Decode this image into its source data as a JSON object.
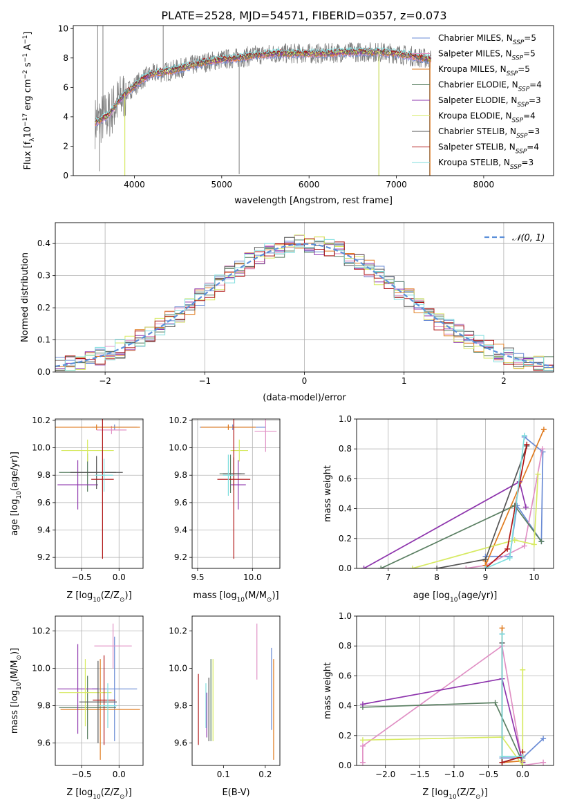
{
  "figure": {
    "title": "PLATE=2528, MJD=54571, FIBERID=0357, z=0.073"
  },
  "colors": {
    "chabrier_miles": "#6a8bd4",
    "salpeter_miles": "#e08fc4",
    "kroupa_miles": "#e07b1f",
    "chabrier_elodie": "#5a7f62",
    "salpeter_elodie": "#8e35ad",
    "kroupa_elodie": "#d7ea63",
    "chabrier_stelib": "#555555",
    "salpeter_stelib": "#b01515",
    "kroupa_stelib": "#7fdede",
    "data": "#7f7f7f",
    "gauss": "#5b8fd9"
  },
  "chart_data": [
    {
      "id": "spectrum",
      "type": "line",
      "xlabel": "wavelength [Angstrom, rest frame]",
      "ylabel": "Flux [f",
      "ylabel_sub": "λ",
      "ylabel_rest": "10",
      "ylabel_sup1": "−17",
      "ylabel_rest2": " erg cm",
      "ylabel_sup2": "−2",
      "ylabel_rest3": " s",
      "ylabel_sup3": "−1",
      "ylabel_rest4": " A",
      "ylabel_sup4": "−1",
      "ylabel_end": "]",
      "xlim": [
        3300,
        8800
      ],
      "ylim": [
        0,
        10.2
      ],
      "xticks": [
        4000,
        5000,
        6000,
        7000,
        8000
      ],
      "yticks": [
        0,
        2,
        4,
        6,
        8,
        10
      ],
      "grid": false,
      "legend_position": "right",
      "legend": [
        {
          "label": "Chabrier MILES, N",
          "sub": "SSP",
          "tail": "=5",
          "color_key": "chabrier_miles"
        },
        {
          "label": "Salpeter MILES, N",
          "sub": "SSP",
          "tail": "=5",
          "color_key": "salpeter_miles"
        },
        {
          "label": "Kroupa MILES, N",
          "sub": "SSP",
          "tail": "=5",
          "color_key": "kroupa_miles"
        },
        {
          "label": "Chabrier ELODIE, N",
          "sub": "SSP",
          "tail": "=4",
          "color_key": "chabrier_elodie"
        },
        {
          "label": "Salpeter ELODIE, N",
          "sub": "SSP",
          "tail": "=3",
          "color_key": "salpeter_elodie"
        },
        {
          "label": "Kroupa ELODIE, N",
          "sub": "SSP",
          "tail": "=4",
          "color_key": "kroupa_elodie"
        },
        {
          "label": "Chabrier STELIB, N",
          "sub": "SSP",
          "tail": "=3",
          "color_key": "chabrier_stelib"
        },
        {
          "label": "Salpeter STELIB, N",
          "sub": "SSP",
          "tail": "=4",
          "color_key": "salpeter_stelib"
        },
        {
          "label": "Kroupa STELIB, N",
          "sub": "SSP",
          "tail": "=3",
          "color_key": "kroupa_stelib"
        }
      ],
      "continuum": [
        [
          3550,
          3.6
        ],
        [
          3700,
          4.1
        ],
        [
          3800,
          4.9
        ],
        [
          3900,
          5.6
        ],
        [
          4000,
          6.1
        ],
        [
          4100,
          6.6
        ],
        [
          4200,
          6.9
        ],
        [
          4400,
          7.1
        ],
        [
          4600,
          7.4
        ],
        [
          4800,
          7.7
        ],
        [
          5000,
          7.9
        ],
        [
          5200,
          8.0
        ],
        [
          5400,
          8.2
        ],
        [
          5600,
          8.3
        ],
        [
          5800,
          8.3
        ],
        [
          6000,
          8.3
        ],
        [
          6200,
          8.3
        ],
        [
          6400,
          8.4
        ],
        [
          6600,
          8.4
        ],
        [
          6800,
          8.4
        ],
        [
          7000,
          8.3
        ],
        [
          7200,
          8.1
        ],
        [
          7400,
          7.9
        ]
      ],
      "spikes": [
        [
          3580,
          10.2
        ],
        [
          3600,
          0.3
        ],
        [
          3640,
          10.2
        ],
        [
          3890,
          0.0
        ],
        [
          4330,
          10.2
        ],
        [
          5200,
          0.1
        ],
        [
          6800,
          0.0
        ],
        [
          7380,
          0.0
        ]
      ]
    },
    {
      "id": "residual-hist",
      "type": "line",
      "xlabel": "(data-model)/error",
      "ylabel": "Normed distribution",
      "xlim": [
        -2.5,
        2.5
      ],
      "ylim": [
        0,
        0.465
      ],
      "xticks": [
        -2,
        -1,
        0,
        1,
        2
      ],
      "yticks": [
        0.0,
        0.1,
        0.2,
        0.3,
        0.4
      ],
      "grid": true,
      "legend_position": "upper right",
      "legend_label": "𝒩(0, 1)",
      "bins_start": -2.5,
      "bin_width": 0.1
    },
    {
      "id": "age-vs-Z",
      "type": "scatter",
      "xlabel": "Z [log",
      "xlabel_sub": "10",
      "xlabel_rest": "(Z/Z",
      "xlabel_sub2": "⊙",
      "xlabel_end": ")]",
      "ylabel": "age  [log",
      "ylabel_sub": "10",
      "ylabel_rest": "(age/yr)]",
      "xlim": [
        -0.85,
        0.32
      ],
      "ylim": [
        9.12,
        10.21
      ],
      "xticks": [
        -0.5,
        0.0
      ],
      "xticklabels": [
        "−0.5",
        "0.0"
      ],
      "yticks": [
        9.2,
        9.4,
        9.6,
        9.8,
        10.0,
        10.2
      ],
      "grid": true,
      "errorbars": [
        {
          "color_key": "chabrier_miles",
          "x": -0.06,
          "y": 10.15,
          "xerr": 0.3,
          "yerr": 0.02
        },
        {
          "color_key": "salpeter_miles",
          "x": -0.1,
          "y": 10.13,
          "xerr": 0.2,
          "yerr": 0.03
        },
        {
          "color_key": "kroupa_miles",
          "x": -0.3,
          "y": 10.15,
          "xerr": 0.58,
          "yerr": 0.02
        },
        {
          "color_key": "chabrier_elodie",
          "x": -0.42,
          "y": 9.82,
          "xerr": 0.38,
          "yerr": 0.14
        },
        {
          "color_key": "salpeter_elodie",
          "x": -0.55,
          "y": 9.73,
          "xerr": 0.27,
          "yerr": 0.18
        },
        {
          "color_key": "kroupa_elodie",
          "x": -0.42,
          "y": 9.98,
          "xerr": 0.35,
          "yerr": 0.08
        },
        {
          "color_key": "chabrier_stelib",
          "x": -0.3,
          "y": 9.82,
          "xerr": 0.35,
          "yerr": 0.12
        },
        {
          "color_key": "salpeter_stelib",
          "x": -0.22,
          "y": 9.77,
          "xerr": 0.15,
          "yerr": 0.58
        },
        {
          "color_key": "kroupa_stelib",
          "x": -0.2,
          "y": 9.8,
          "xerr": 0.12,
          "yerr": 0.12
        }
      ]
    },
    {
      "id": "age-vs-mass",
      "type": "scatter",
      "xlabel": "mass [log",
      "xlabel_sub": "10",
      "xlabel_rest": "(M/M",
      "xlabel_sub2": "⊙",
      "xlabel_end": ")]",
      "xlim": [
        9.45,
        10.25
      ],
      "ylim": [
        9.12,
        10.21
      ],
      "xticks": [
        9.5,
        10.0
      ],
      "xticklabels": [
        "9.5",
        "10.0"
      ],
      "yticks": [
        9.2,
        9.4,
        9.6,
        9.8,
        10.0,
        10.2
      ],
      "grid": true,
      "errorbars": [
        {
          "color_key": "chabrier_miles",
          "x": 9.82,
          "y": 10.15,
          "xerr": 0.3,
          "yerr": 0.02
        },
        {
          "color_key": "salpeter_miles",
          "x": 10.12,
          "y": 10.12,
          "xerr": 0.1,
          "yerr": 0.15
        },
        {
          "color_key": "kroupa_miles",
          "x": 9.78,
          "y": 10.15,
          "xerr": 0.25,
          "yerr": 0.02
        },
        {
          "color_key": "chabrier_elodie",
          "x": 9.8,
          "y": 9.81,
          "xerr": 0.1,
          "yerr": 0.14
        },
        {
          "color_key": "salpeter_elodie",
          "x": 9.87,
          "y": 9.73,
          "xerr": 0.07,
          "yerr": 0.18
        },
        {
          "color_key": "kroupa_elodie",
          "x": 9.88,
          "y": 9.98,
          "xerr": 0.08,
          "yerr": 0.08
        },
        {
          "color_key": "chabrier_stelib",
          "x": 9.83,
          "y": 9.81,
          "xerr": 0.1,
          "yerr": 0.12
        },
        {
          "color_key": "salpeter_stelib",
          "x": 9.83,
          "y": 9.77,
          "xerr": 0.15,
          "yerr": 0.58
        },
        {
          "color_key": "kroupa_stelib",
          "x": 9.78,
          "y": 9.8,
          "xerr": 0.05,
          "yerr": 0.15
        }
      ]
    },
    {
      "id": "weight-vs-age",
      "type": "line",
      "xlabel": "age  [log",
      "xlabel_sub": "10",
      "xlabel_rest": "(age/yr)]",
      "ylabel": "mass weight",
      "xlim": [
        6.35,
        10.4
      ],
      "ylim": [
        0,
        1.0
      ],
      "xticks": [
        7,
        8,
        9,
        10
      ],
      "yticks": [
        0.0,
        0.2,
        0.4,
        0.6,
        0.8,
        1.0
      ],
      "grid": true,
      "series": [
        {
          "color_key": "chabrier_miles",
          "points": [
            [
              9.0,
              0.08
            ],
            [
              9.5,
              0.08
            ],
            [
              9.65,
              0.42
            ],
            [
              10.15,
              0.18
            ],
            [
              10.18,
              0.78
            ],
            [
              9.8,
              0.88
            ]
          ]
        },
        {
          "color_key": "salpeter_miles",
          "points": [
            [
              8.6,
              0.0
            ],
            [
              9.0,
              0.02
            ],
            [
              9.8,
              0.15
            ],
            [
              10.17,
              0.8
            ]
          ]
        },
        {
          "color_key": "kroupa_miles",
          "points": [
            [
              9.0,
              0.05
            ],
            [
              9.0,
              0.02
            ],
            [
              10.2,
              0.93
            ]
          ]
        },
        {
          "color_key": "chabrier_elodie",
          "points": [
            [
              6.85,
              0.0
            ],
            [
              9.6,
              0.42
            ],
            [
              10.15,
              0.18
            ]
          ]
        },
        {
          "color_key": "salpeter_elodie",
          "points": [
            [
              6.5,
              0.0
            ],
            [
              9.7,
              0.58
            ],
            [
              9.83,
              0.41
            ]
          ]
        },
        {
          "color_key": "kroupa_elodie",
          "points": [
            [
              7.5,
              0.0
            ],
            [
              9.6,
              0.19
            ],
            [
              10.0,
              0.16
            ],
            [
              10.08,
              0.63
            ]
          ]
        },
        {
          "color_key": "chabrier_stelib",
          "points": [
            [
              8.0,
              0.0
            ],
            [
              9.0,
              0.06
            ],
            [
              9.85,
              0.82
            ]
          ]
        },
        {
          "color_key": "salpeter_stelib",
          "points": [
            [
              9.0,
              0.0
            ],
            [
              9.45,
              0.13
            ],
            [
              9.85,
              0.83
            ]
          ]
        },
        {
          "color_key": "kroupa_stelib",
          "points": [
            [
              9.0,
              0.0
            ],
            [
              9.5,
              0.07
            ],
            [
              9.8,
              0.89
            ]
          ]
        }
      ]
    },
    {
      "id": "mass-vs-Z",
      "type": "scatter",
      "xlabel": "Z [log",
      "xlabel_sub": "10",
      "xlabel_rest": "(Z/Z",
      "xlabel_sub2": "⊙",
      "xlabel_end": ")]",
      "ylabel": "mass [log",
      "ylabel_sub": "10",
      "ylabel_rest": "(M/M",
      "ylabel_sub2": "⊙",
      "ylabel_end": ")]",
      "xlim": [
        -0.85,
        0.32
      ],
      "ylim": [
        9.48,
        10.28
      ],
      "xticks": [
        -0.5,
        0.0
      ],
      "xticklabels": [
        "−0.5",
        "0.0"
      ],
      "yticks": [
        9.6,
        9.8,
        10.0,
        10.2
      ],
      "grid": true,
      "errorbars": [
        {
          "color_key": "chabrier_miles",
          "x": -0.06,
          "y": 9.89,
          "xerr": 0.3,
          "yerr": 0.28
        },
        {
          "color_key": "salpeter_miles",
          "x": -0.08,
          "y": 10.12,
          "xerr": 0.25,
          "yerr": 0.12
        },
        {
          "color_key": "kroupa_miles",
          "x": -0.25,
          "y": 9.78,
          "xerr": 0.53,
          "yerr": 0.27
        },
        {
          "color_key": "chabrier_elodie",
          "x": -0.42,
          "y": 9.79,
          "xerr": 0.38,
          "yerr": 0.17
        },
        {
          "color_key": "salpeter_elodie",
          "x": -0.55,
          "y": 9.89,
          "xerr": 0.27,
          "yerr": 0.24
        },
        {
          "color_key": "kroupa_elodie",
          "x": -0.45,
          "y": 9.87,
          "xerr": 0.35,
          "yerr": 0.18
        },
        {
          "color_key": "chabrier_stelib",
          "x": -0.28,
          "y": 9.82,
          "xerr": 0.25,
          "yerr": 0.22
        },
        {
          "color_key": "salpeter_stelib",
          "x": -0.2,
          "y": 9.83,
          "xerr": 0.15,
          "yerr": 0.24
        },
        {
          "color_key": "kroupa_stelib",
          "x": -0.15,
          "y": 9.8,
          "xerr": 0.12,
          "yerr": 0.12
        }
      ]
    },
    {
      "id": "mass-vs-ebv",
      "type": "scatter",
      "xlabel": "E(B-V)",
      "xlim": [
        0.025,
        0.235
      ],
      "ylim": [
        9.48,
        10.28
      ],
      "xticks": [
        0.1,
        0.2
      ],
      "xticklabels": [
        "0.1",
        "0.2"
      ],
      "yticks": [
        9.6,
        9.8,
        10.0,
        10.2
      ],
      "grid": false,
      "errorbars": [
        {
          "color_key": "chabrier_miles",
          "x": 0.215,
          "y": 9.89,
          "xerr": 0,
          "yerr": 0.22
        },
        {
          "color_key": "salpeter_miles",
          "x": 0.18,
          "y": 10.09,
          "xerr": 0,
          "yerr": 0.15
        },
        {
          "color_key": "kroupa_miles",
          "x": 0.22,
          "y": 9.78,
          "xerr": 0,
          "yerr": 0.27
        },
        {
          "color_key": "chabrier_elodie",
          "x": 0.07,
          "y": 9.83,
          "xerr": 0,
          "yerr": 0.22
        },
        {
          "color_key": "salpeter_elodie",
          "x": 0.06,
          "y": 9.75,
          "xerr": 0,
          "yerr": 0.12
        },
        {
          "color_key": "kroupa_elodie",
          "x": 0.075,
          "y": 9.83,
          "xerr": 0,
          "yerr": 0.22
        },
        {
          "color_key": "chabrier_stelib",
          "x": 0.065,
          "y": 9.78,
          "xerr": 0,
          "yerr": 0.17
        },
        {
          "color_key": "salpeter_stelib",
          "x": 0.04,
          "y": 9.78,
          "xerr": 0,
          "yerr": 0.19
        },
        {
          "color_key": "kroupa_stelib",
          "x": 0.058,
          "y": 9.8,
          "xerr": 0,
          "yerr": 0.12
        }
      ]
    },
    {
      "id": "weight-vs-Z",
      "type": "line",
      "xlabel": "Z [log",
      "xlabel_sub": "10",
      "xlabel_rest": "(Z/Z",
      "xlabel_sub2": "⊙",
      "xlabel_end": ")]",
      "ylabel": "mass weight",
      "xlim": [
        -2.42,
        0.45
      ],
      "ylim": [
        0,
        1.0
      ],
      "xticks": [
        -2.0,
        -1.5,
        -1.0,
        -0.5,
        0.0
      ],
      "xticklabels": [
        "−2.0",
        "−1.5",
        "−1.0",
        "−0.5",
        "0.0"
      ],
      "yticks": [
        0.0,
        0.2,
        0.4,
        0.6,
        0.8,
        1.0
      ],
      "grid": true,
      "series": [
        {
          "color_key": "chabrier_miles",
          "points": [
            [
              -0.3,
              0.88
            ],
            [
              -0.3,
              0.05
            ],
            [
              0.0,
              0.05
            ],
            [
              0.3,
              0.18
            ]
          ]
        },
        {
          "color_key": "salpeter_miles",
          "points": [
            [
              -2.33,
              0.02
            ],
            [
              -2.33,
              0.13
            ],
            [
              -0.3,
              0.8
            ],
            [
              0.0,
              0.0
            ],
            [
              0.3,
              0.02
            ]
          ]
        },
        {
          "color_key": "kroupa_miles",
          "points": [
            [
              -0.3,
              0.92
            ],
            [
              -0.3,
              0.02
            ],
            [
              0.0,
              0.03
            ]
          ]
        },
        {
          "color_key": "chabrier_elodie",
          "points": [
            [
              -2.33,
              0.39
            ],
            [
              -0.4,
              0.42
            ],
            [
              0.0,
              0.02
            ]
          ]
        },
        {
          "color_key": "salpeter_elodie",
          "points": [
            [
              -2.33,
              0.41
            ],
            [
              -0.3,
              0.58
            ],
            [
              0.0,
              0.02
            ]
          ]
        },
        {
          "color_key": "kroupa_elodie",
          "points": [
            [
              -2.33,
              0.17
            ],
            [
              -0.3,
              0.19
            ],
            [
              0.0,
              0.0
            ],
            [
              0.0,
              0.64
            ]
          ]
        },
        {
          "color_key": "chabrier_stelib",
          "points": [
            [
              -0.3,
              0.82
            ],
            [
              -0.3,
              0.02
            ],
            [
              0.0,
              0.06
            ]
          ]
        },
        {
          "color_key": "salpeter_stelib",
          "points": [
            [
              -0.3,
              0.02
            ],
            [
              0.0,
              0.06
            ],
            [
              0.0,
              0.09
            ]
          ]
        },
        {
          "color_key": "kroupa_stelib",
          "points": [
            [
              -0.3,
              0.88
            ],
            [
              -0.3,
              0.06
            ],
            [
              0.0,
              0.06
            ]
          ]
        }
      ]
    }
  ]
}
